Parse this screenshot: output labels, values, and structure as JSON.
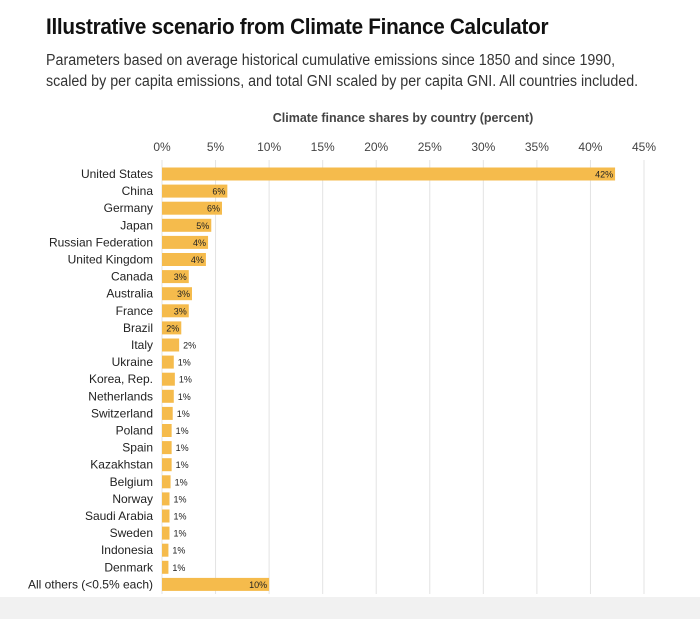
{
  "header": {
    "title": "Illustrative scenario from Climate Finance Calculator",
    "subtitle": "Parameters based on average historical cumulative emissions since 1850 and since 1990, scaled by per capita emissions, and total GNI scaled by per capita GNI. All countries included."
  },
  "colors": {
    "bar": "#f5bb4c",
    "grid": "#e3e3e3"
  },
  "chart_data": {
    "type": "bar",
    "orientation": "horizontal",
    "title": "Climate finance shares by country (percent)",
    "xlabel": "",
    "ylabel": "",
    "xlim": [
      0,
      45
    ],
    "xticks": [
      0,
      5,
      10,
      15,
      20,
      25,
      30,
      35,
      40,
      45
    ],
    "xtick_labels": [
      "0%",
      "5%",
      "10%",
      "15%",
      "20%",
      "25%",
      "30%",
      "35%",
      "40%",
      "45%"
    ],
    "axis_position": "top",
    "grid": true,
    "categories": [
      "United States",
      "China",
      "Germany",
      "Japan",
      "Russian Federation",
      "United Kingdom",
      "Canada",
      "Australia",
      "France",
      "Brazil",
      "Italy",
      "Ukraine",
      "Korea, Rep.",
      "Netherlands",
      "Switzerland",
      "Poland",
      "Spain",
      "Kazakhstan",
      "Belgium",
      "Norway",
      "Saudi Arabia",
      "Sweden",
      "Indonesia",
      "Denmark",
      "All others (<0.5% each)"
    ],
    "values": [
      42.3,
      6.1,
      5.6,
      4.6,
      4.3,
      4.1,
      2.5,
      2.8,
      2.5,
      1.8,
      1.6,
      1.1,
      1.2,
      1.1,
      1.0,
      0.9,
      0.9,
      0.9,
      0.8,
      0.7,
      0.7,
      0.7,
      0.6,
      0.6,
      10.0
    ],
    "value_labels": [
      "42%",
      "6%",
      "6%",
      "5%",
      "4%",
      "4%",
      "3%",
      "3%",
      "3%",
      "2%",
      "2%",
      "1%",
      "1%",
      "1%",
      "1%",
      "1%",
      "1%",
      "1%",
      "1%",
      "1%",
      "1%",
      "1%",
      "1%",
      "1%",
      "10%"
    ]
  }
}
